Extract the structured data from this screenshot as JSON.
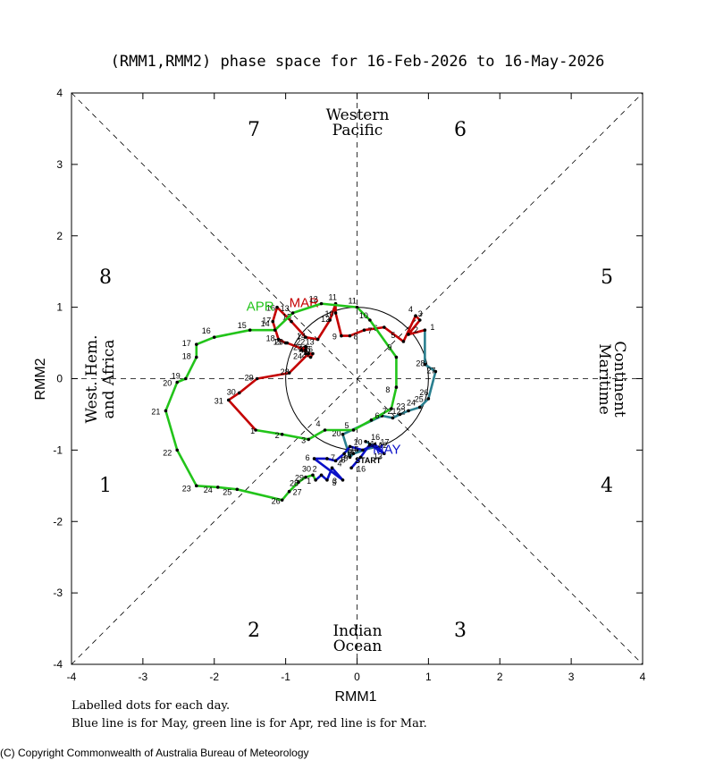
{
  "title": "(RMM1,RMM2) phase space for 16-Feb-2026 to 16-May-2026",
  "x_axis_label": "RMM1",
  "y_axis_label": "RMM2",
  "phase_numbers": [
    "1",
    "2",
    "3",
    "4",
    "5",
    "6",
    "7",
    "8"
  ],
  "regions": {
    "western_pacific": [
      "Western",
      "Pacific"
    ],
    "indian_ocean": [
      "Indian",
      "Ocean"
    ],
    "maritime_continent": [
      "Maritime",
      "Continent"
    ],
    "west_hem_africa": [
      "West. Hem.",
      "and Africa"
    ]
  },
  "notes": [
    "Labelled dots for each day.",
    "Blue line is for May, green line is for Apr, red line is for Mar."
  ],
  "copyright": "(C) Copyright Commonwealth of Australia Bureau of Meteorology",
  "start_label": "START",
  "chart_data": {
    "type": "line",
    "title": "(RMM1,RMM2) phase space for 16-Feb-2026 to 16-May-2026",
    "xlabel": "RMM1",
    "ylabel": "RMM2",
    "xlim": [
      -4,
      4
    ],
    "ylim": [
      -4,
      4
    ],
    "xticks": [
      "-4",
      "-3",
      "-2",
      "-1",
      "0",
      "1",
      "2",
      "3",
      "4"
    ],
    "yticks": [
      "-4",
      "-3",
      "-2",
      "-1",
      "0",
      "1",
      "2",
      "3",
      "4"
    ],
    "unit_circle_radius": 1,
    "series": [
      {
        "name": "Feb",
        "label": "",
        "color": "#2a7f8f",
        "days": [
          "16",
          "17",
          "18",
          "19",
          "20",
          "21",
          "22",
          "23",
          "24",
          "25",
          "26",
          "27",
          "28"
        ],
        "x": [
          0.12,
          0.25,
          -0.05,
          -0.1,
          -0.2,
          0.35,
          0.5,
          0.6,
          0.72,
          0.88,
          1.0,
          1.1,
          0.95
        ],
        "y": [
          -0.88,
          -0.95,
          -1.05,
          -1.1,
          -0.78,
          -0.52,
          -0.55,
          -0.5,
          -0.45,
          -0.4,
          -0.28,
          0.1,
          0.2
        ],
        "label_offset": [
          [
            6,
            -2
          ],
          [
            6,
            -2
          ],
          [
            -12,
            4
          ],
          [
            -12,
            4
          ],
          [
            -12,
            2
          ],
          [
            6,
            -2
          ],
          [
            4,
            -4
          ],
          [
            -4,
            -6
          ],
          [
            -2,
            -6
          ],
          [
            -6,
            -6
          ],
          [
            -10,
            -4
          ],
          [
            -10,
            2
          ],
          [
            -10,
            2
          ]
        ]
      },
      {
        "name": "Mar",
        "label": "MAR",
        "color": "#c40000",
        "days": [
          "1",
          "2",
          "3",
          "4",
          "5",
          "6",
          "7",
          "8",
          "9",
          "10",
          "11",
          "12",
          "13",
          "14",
          "15",
          "16",
          "17",
          "18",
          "19",
          "20",
          "21",
          "22",
          "23",
          "24",
          "25",
          "26",
          "27",
          "28",
          "29",
          "30",
          "31"
        ],
        "x": [
          0.95,
          0.72,
          0.88,
          0.82,
          0.65,
          0.38,
          0.1,
          -0.1,
          -0.22,
          -0.3,
          -0.3,
          -0.38,
          -0.55,
          -0.72,
          -0.92,
          -1.12,
          -1.18,
          -1.1,
          -1.0,
          -0.98,
          -0.72,
          -0.78,
          -0.72,
          -0.72,
          -0.65,
          -0.62,
          -0.68,
          -0.95,
          -1.4,
          -1.65,
          -1.8
        ],
        "y": [
          0.68,
          0.62,
          0.82,
          0.88,
          0.52,
          0.72,
          0.68,
          0.6,
          0.6,
          0.92,
          1.05,
          0.82,
          0.55,
          0.58,
          0.8,
          1.0,
          0.8,
          0.55,
          0.5,
          0.5,
          0.4,
          0.4,
          0.45,
          0.35,
          0.3,
          0.35,
          0.35,
          0.08,
          0.0,
          -0.2,
          -0.3
        ],
        "label_offset": [
          [
            6,
            0
          ],
          [
            6,
            -2
          ],
          [
            -2,
            -4
          ],
          [
            -8,
            -4
          ],
          [
            -14,
            -4
          ],
          [
            -12,
            4
          ],
          [
            4,
            4
          ],
          [
            4,
            4
          ],
          [
            -10,
            4
          ],
          [
            -12,
            4
          ],
          [
            -8,
            -4
          ],
          [
            -10,
            2
          ],
          [
            -14,
            6
          ],
          [
            -10,
            2
          ],
          [
            -10,
            -2
          ],
          [
            -12,
            4
          ],
          [
            -12,
            2
          ],
          [
            -14,
            2
          ],
          [
            -14,
            2
          ],
          [
            -14,
            2
          ],
          [
            -8,
            2
          ],
          [
            -6,
            -6
          ],
          [
            -14,
            4
          ],
          [
            -14,
            6
          ],
          [
            -10,
            -6
          ],
          [
            -10,
            -2
          ],
          [
            -8,
            4
          ],
          [
            -10,
            2
          ],
          [
            -14,
            2
          ],
          [
            -14,
            2
          ],
          [
            -16,
            4
          ]
        ],
        "label_pos": [
          -0.95,
          1.0
        ]
      },
      {
        "name": "Apr",
        "label": "APR",
        "color": "#22c41a",
        "days": [
          "1",
          "2",
          "3",
          "4",
          "5",
          "6",
          "7",
          "8",
          "9",
          "10",
          "11",
          "12",
          "13",
          "14",
          "15",
          "16",
          "17",
          "18",
          "19",
          "20",
          "21",
          "22",
          "23",
          "24",
          "25",
          "26",
          "27",
          "28",
          "29",
          "30"
        ],
        "x": [
          -1.42,
          -1.05,
          -0.68,
          -0.45,
          -0.05,
          0.2,
          0.48,
          0.55,
          0.55,
          0.18,
          0.0,
          -0.5,
          -0.9,
          -1.15,
          -1.5,
          -2.0,
          -2.25,
          -2.25,
          -2.4,
          -2.52,
          -2.68,
          -2.52,
          -2.25,
          -1.95,
          -1.68,
          -1.05,
          -0.95,
          -0.82,
          -0.72,
          -0.62
        ],
        "y": [
          -0.72,
          -0.78,
          -0.85,
          -0.72,
          -0.72,
          -0.58,
          -0.42,
          -0.12,
          0.3,
          0.82,
          1.0,
          1.05,
          0.92,
          0.68,
          0.68,
          0.58,
          0.48,
          0.3,
          0.0,
          -0.05,
          -0.45,
          -1.0,
          -1.5,
          -1.52,
          -1.55,
          -1.7,
          -1.58,
          -1.45,
          -1.38,
          -1.35
        ],
        "label_offset": [
          [
            -6,
            4
          ],
          [
            -8,
            4
          ],
          [
            -8,
            4
          ],
          [
            -10,
            -4
          ],
          [
            -10,
            -2
          ],
          [
            4,
            -2
          ],
          [
            -10,
            6
          ],
          [
            -12,
            6
          ],
          [
            -10,
            -8
          ],
          [
            -12,
            -2
          ],
          [
            -10,
            -4
          ],
          [
            -14,
            -2
          ],
          [
            -14,
            -2
          ],
          [
            -16,
            -4
          ],
          [
            -14,
            -2
          ],
          [
            -14,
            -4
          ],
          [
            -16,
            2
          ],
          [
            -16,
            2
          ],
          [
            -16,
            0
          ],
          [
            -16,
            4
          ],
          [
            -16,
            4
          ],
          [
            -16,
            6
          ],
          [
            -16,
            6
          ],
          [
            -16,
            6
          ],
          [
            -16,
            6
          ],
          [
            -12,
            4
          ],
          [
            4,
            4
          ],
          [
            -10,
            4
          ],
          [
            -12,
            4
          ],
          [
            -12,
            -4
          ]
        ],
        "label_pos": [
          -1.55,
          0.95
        ]
      },
      {
        "name": "May",
        "label": "MAY",
        "color": "#0a10c8",
        "days": [
          "1",
          "2",
          "3",
          "4",
          "5",
          "6",
          "7",
          "8",
          "9",
          "10",
          "11",
          "12",
          "13",
          "14",
          "15",
          "16"
        ],
        "x": [
          -0.58,
          -0.5,
          -0.42,
          -0.35,
          -0.2,
          -0.6,
          -0.42,
          -0.3,
          -0.18,
          -0.1,
          0.08,
          0.25,
          0.38,
          0.18,
          0.05,
          -0.08
        ],
        "y": [
          -1.42,
          -1.35,
          -1.42,
          -1.25,
          -1.42,
          -1.12,
          -1.12,
          -1.15,
          -1.05,
          -0.95,
          -1.0,
          -0.92,
          -1.05,
          -0.92,
          -1.1,
          -1.25
        ],
        "label_offset": [
          [
            -10,
            4
          ],
          [
            -10,
            -4
          ],
          [
            6,
            4
          ],
          [
            6,
            -2
          ],
          [
            -12,
            6
          ],
          [
            -10,
            2
          ],
          [
            4,
            2
          ],
          [
            6,
            2
          ],
          [
            4,
            2
          ],
          [
            4,
            -2
          ],
          [
            4,
            -4
          ],
          [
            4,
            4
          ],
          [
            -12,
            6
          ],
          [
            4,
            4
          ],
          [
            -12,
            -6
          ],
          [
            6,
            4
          ]
        ],
        "label_pos": [
          0.22,
          -1.05
        ]
      }
    ]
  }
}
